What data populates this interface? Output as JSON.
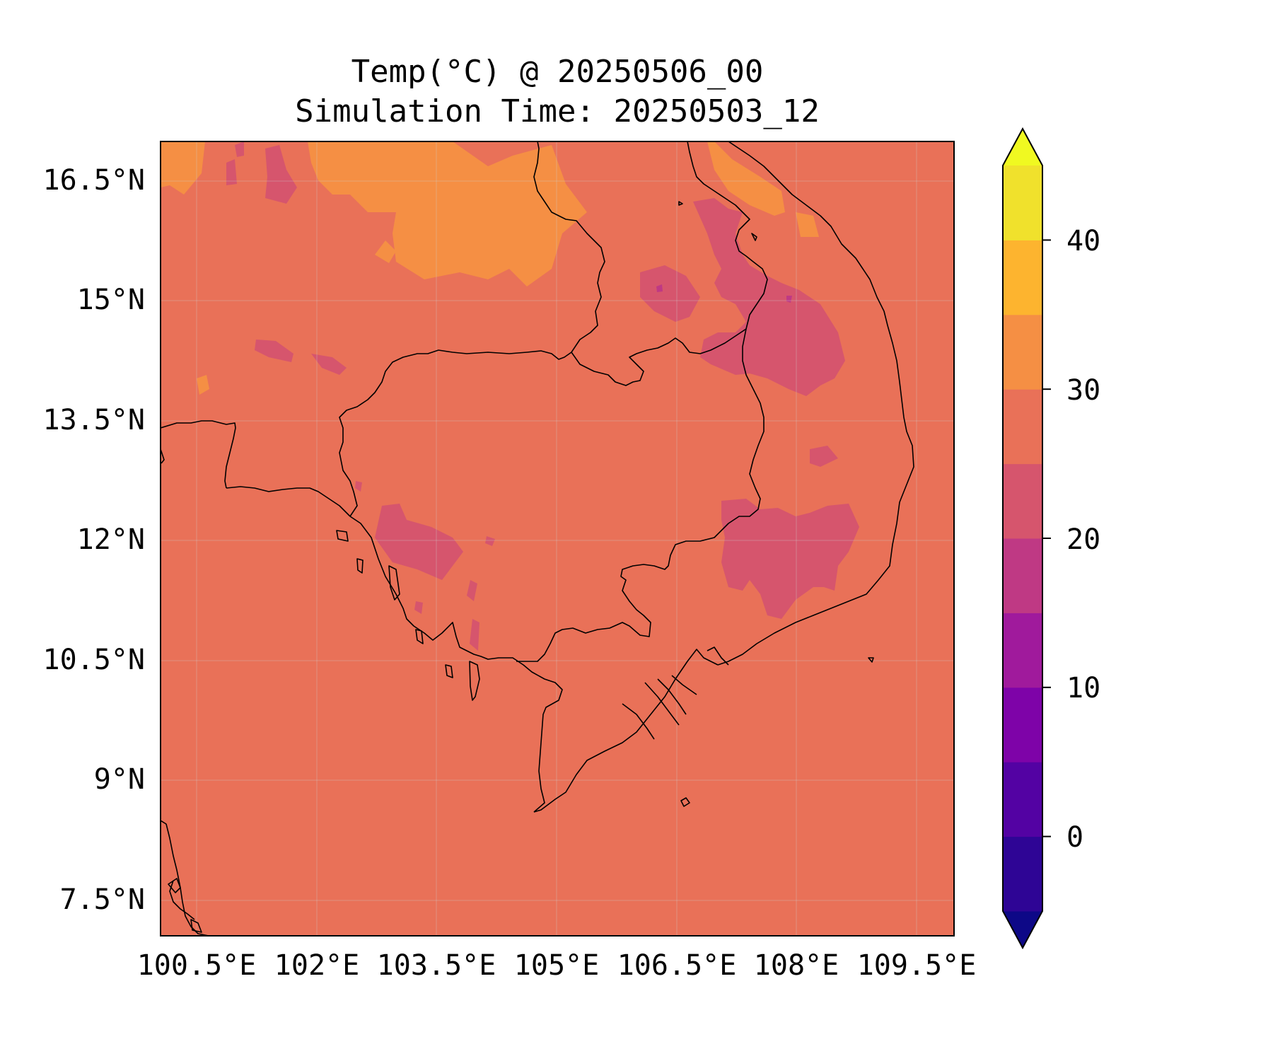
{
  "title": {
    "line1": "Temp(°C) @ 20250506_00",
    "line2": "Simulation Time: 20250503_12"
  },
  "axes": {
    "x_ticks": [
      "100.5°E",
      "102°E",
      "103.5°E",
      "105°E",
      "106.5°E",
      "108°E",
      "109.5°E"
    ],
    "y_ticks": [
      "16.5°N",
      "15°N",
      "13.5°N",
      "12°N",
      "10.5°N",
      "9°N",
      "7.5°N"
    ]
  },
  "colorbar": {
    "ticks": [
      "40",
      "30",
      "20",
      "10",
      "0"
    ],
    "levels": [
      -5,
      0,
      5,
      10,
      15,
      20,
      25,
      30,
      35,
      40,
      45
    ],
    "colors": [
      "#0d0887",
      "#2e0595",
      "#5302a3",
      "#7e03a8",
      "#a01a9c",
      "#bf3984",
      "#d6556d",
      "#e97158",
      "#f58f44",
      "#fdb42f",
      "#f0e12c",
      "#f0f921"
    ],
    "extend": "both"
  },
  "map": {
    "background_color": "#e97158",
    "region": "Cambodia / southern Vietnam / Laos / Thailand"
  }
}
